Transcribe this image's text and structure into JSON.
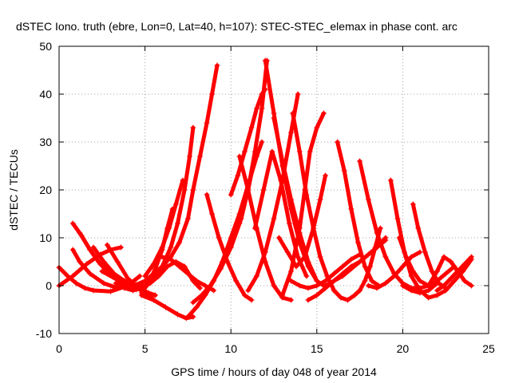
{
  "chart_data": {
    "type": "scatter",
    "title": "dSTEC Iono. truth (ebre, Lon=0, Lat=40, h=107): STEC-STEC_elemax in phase cont. arc",
    "xlabel": "GPS time / hours of day 048 of year 2014",
    "ylabel": "dSTEC  / TECUs",
    "xlim": [
      0,
      25
    ],
    "ylim": [
      -10,
      50
    ],
    "x_ticks": [
      0,
      5,
      10,
      15,
      20,
      25
    ],
    "y_ticks": [
      -10,
      0,
      10,
      20,
      30,
      40,
      50
    ],
    "grid": true,
    "marker": "+",
    "series_color": "#ff0000",
    "series": [
      {
        "x": [
          0.0,
          0.5,
          1.0,
          1.5,
          2.0,
          3.0,
          4.0,
          4.7
        ],
        "values": [
          3.8,
          2.0,
          0.5,
          -0.5,
          -1.0,
          -1.2,
          0.0,
          2.0
        ]
      },
      {
        "x": [
          0.0,
          0.8,
          1.6,
          2.4,
          3.0,
          3.6
        ],
        "values": [
          0.0,
          2.0,
          4.5,
          6.5,
          7.5,
          8.0
        ]
      },
      {
        "x": [
          0.8,
          1.3,
          1.8,
          2.3,
          2.8,
          3.3,
          3.8
        ],
        "values": [
          13.0,
          10.5,
          7.5,
          5.0,
          3.0,
          1.5,
          0.5
        ]
      },
      {
        "x": [
          0.8,
          1.2,
          1.8,
          2.6,
          3.4
        ],
        "values": [
          7.5,
          5.0,
          2.5,
          0.5,
          -0.5
        ]
      },
      {
        "x": [
          1.2,
          1.8,
          2.4,
          3.0,
          3.6,
          4.2
        ],
        "values": [
          11.0,
          7.5,
          4.5,
          2.5,
          1.0,
          0.5
        ]
      },
      {
        "x": [
          2.0,
          2.6,
          3.2,
          3.8,
          4.4,
          5.0
        ],
        "values": [
          8.0,
          5.0,
          2.5,
          1.0,
          0.2,
          0.0
        ]
      },
      {
        "x": [
          2.8,
          3.4,
          4.0,
          4.6,
          5.2,
          5.6
        ],
        "values": [
          8.5,
          5.0,
          1.5,
          -0.5,
          -1.5,
          -2.0
        ]
      },
      {
        "x": [
          3.3,
          3.8,
          4.3,
          4.8,
          5.3,
          5.8,
          6.3,
          6.8,
          7.3,
          7.8,
          8.2
        ],
        "values": [
          0.5,
          -0.5,
          -1.0,
          -0.5,
          0.5,
          2.0,
          4.0,
          5.0,
          4.0,
          1.0,
          -0.5
        ]
      },
      {
        "x": [
          2.5,
          3.5,
          4.2,
          4.8,
          5.4
        ],
        "values": [
          3.0,
          1.0,
          0.0,
          -1.0,
          -2.5
        ]
      },
      {
        "x": [
          3.5,
          4.0,
          4.5,
          5.0,
          5.5,
          6.0,
          6.5,
          6.9,
          7.3,
          7.6,
          7.8
        ],
        "values": [
          0.5,
          -0.5,
          -0.8,
          0.0,
          1.5,
          4.0,
          8.0,
          13.0,
          20.0,
          27.0,
          33.0
        ]
      },
      {
        "x": [
          4.5,
          5.0,
          5.5,
          6.0,
          6.5,
          7.0,
          7.5,
          7.8,
          8.2,
          8.6,
          8.9,
          9.2
        ],
        "values": [
          0.2,
          1.0,
          2.5,
          4.0,
          6.0,
          9.0,
          14.0,
          20.0,
          27.0,
          34.0,
          40.0,
          46.0
        ]
      },
      {
        "x": [
          5.0,
          5.5,
          6.0,
          6.4,
          6.8,
          7.2
        ],
        "values": [
          2.0,
          4.5,
          8.0,
          12.0,
          17.0,
          22.0
        ]
      },
      {
        "x": [
          4.8,
          5.2,
          5.6,
          6.0,
          6.3,
          6.6
        ],
        "values": [
          -1.5,
          0.5,
          3.5,
          7.5,
          12.0,
          16.0
        ]
      },
      {
        "x": [
          4.8,
          5.5,
          6.2,
          6.9,
          7.4,
          7.8
        ],
        "values": [
          -2.0,
          -3.0,
          -4.5,
          -6.0,
          -6.8,
          -6.5
        ]
      },
      {
        "x": [
          7.5,
          8.0,
          8.5,
          9.0,
          9.5,
          10.0,
          10.5,
          11.0,
          11.5,
          11.8
        ],
        "values": [
          -6.5,
          -4.5,
          -2.0,
          1.0,
          5.0,
          10.0,
          15.0,
          21.0,
          27.0,
          30.0
        ]
      },
      {
        "x": [
          7.8,
          8.3,
          8.8,
          9.4,
          10.0,
          10.6,
          11.0,
          11.4
        ],
        "values": [
          -3.5,
          -2.0,
          0.0,
          3.5,
          8.0,
          14.0,
          20.0,
          27.0
        ]
      },
      {
        "x": [
          6.0,
          6.5,
          7.0,
          7.5,
          8.0,
          8.5,
          9.0
        ],
        "values": [
          6.0,
          5.5,
          4.0,
          2.5,
          1.0,
          0.0,
          -1.0
        ]
      },
      {
        "x": [
          8.6,
          8.9,
          9.3,
          9.8,
          10.3,
          10.8,
          11.2
        ],
        "values": [
          19.0,
          15.0,
          10.0,
          5.0,
          1.0,
          -2.0,
          -3.0
        ]
      },
      {
        "x": [
          9.5,
          10.0,
          10.5,
          11.0,
          11.4,
          11.8,
          12.1
        ],
        "values": [
          5.0,
          8.0,
          13.0,
          20.0,
          28.0,
          37.0,
          47.0
        ]
      },
      {
        "x": [
          10.0,
          10.4,
          10.8,
          11.2,
          11.5,
          11.8,
          12.0
        ],
        "values": [
          19.0,
          23.0,
          28.0,
          33.0,
          37.0,
          40.0,
          41.0
        ]
      },
      {
        "x": [
          10.5,
          11.0,
          11.5,
          12.0,
          12.5,
          13.0,
          13.5
        ],
        "values": [
          27.0,
          20.0,
          12.0,
          5.0,
          0.0,
          -2.5,
          -3.0
        ]
      },
      {
        "x": [
          11.0,
          11.5,
          12.0,
          12.5,
          13.0,
          13.5,
          13.9
        ],
        "values": [
          -1.0,
          2.0,
          7.0,
          14.0,
          22.0,
          32.0,
          40.0
        ]
      },
      {
        "x": [
          11.4,
          11.9,
          12.4,
          12.9,
          13.4,
          13.9,
          14.4
        ],
        "values": [
          12.0,
          20.0,
          28.0,
          22.0,
          13.0,
          6.0,
          2.0
        ]
      },
      {
        "x": [
          12.0,
          12.5,
          13.0,
          13.5,
          14.0,
          14.5,
          15.0,
          15.4
        ],
        "values": [
          47.0,
          36.0,
          25.0,
          16.0,
          9.0,
          4.0,
          1.0,
          0.0
        ]
      },
      {
        "x": [
          12.5,
          13.0,
          13.5,
          14.0,
          14.5,
          15.0
        ],
        "values": [
          35.0,
          26.0,
          18.0,
          11.0,
          5.0,
          1.0
        ]
      },
      {
        "x": [
          13.0,
          13.5,
          14.0,
          14.3,
          14.6,
          15.0,
          15.4
        ],
        "values": [
          -2.0,
          3.0,
          12.0,
          20.0,
          28.0,
          33.0,
          36.0
        ]
      },
      {
        "x": [
          13.6,
          14.0,
          14.4,
          14.8,
          15.2,
          15.6,
          16.0
        ],
        "values": [
          36.0,
          28.0,
          19.0,
          12.0,
          6.0,
          2.0,
          -1.0
        ]
      },
      {
        "x": [
          12.8,
          13.3,
          13.8,
          14.3,
          14.8,
          15.2,
          15.5
        ],
        "values": [
          10.0,
          7.0,
          4.0,
          6.0,
          12.0,
          18.0,
          23.0
        ]
      },
      {
        "x": [
          13.5,
          14.0,
          14.5,
          15.0,
          15.5,
          16.0,
          16.5,
          17.0,
          17.5
        ],
        "values": [
          1.0,
          0.0,
          -0.5,
          0.0,
          1.0,
          2.5,
          4.0,
          5.5,
          6.5
        ]
      },
      {
        "x": [
          14.5,
          15.0,
          15.5,
          16.0,
          16.5,
          17.0,
          17.5,
          18.0,
          18.5,
          19.0
        ],
        "values": [
          -3.0,
          -2.0,
          -0.5,
          1.0,
          2.5,
          4.0,
          5.0,
          6.5,
          8.0,
          9.5
        ]
      },
      {
        "x": [
          16.2,
          16.6,
          17.0,
          17.4,
          17.8,
          18.2,
          18.6
        ],
        "values": [
          30.0,
          24.0,
          16.0,
          9.0,
          4.0,
          1.0,
          0.0
        ]
      },
      {
        "x": [
          16.0,
          16.4,
          16.8,
          17.2,
          17.5
        ],
        "values": [
          -1.0,
          -2.5,
          -3.0,
          -2.0,
          -1.0
        ]
      },
      {
        "x": [
          17.5,
          17.8,
          18.1,
          18.4,
          18.7
        ],
        "values": [
          -1.0,
          1.0,
          4.0,
          8.0,
          12.0
        ]
      },
      {
        "x": [
          17.5,
          18.0,
          18.5,
          19.0,
          19.5,
          20.0,
          20.5,
          21.0,
          21.5,
          22.0,
          22.5,
          23.0
        ],
        "values": [
          26.0,
          18.0,
          11.0,
          6.0,
          2.5,
          0.5,
          -0.5,
          -0.5,
          0.0,
          1.0,
          2.5,
          4.0
        ]
      },
      {
        "x": [
          15.5,
          16.5,
          17.5,
          18.5,
          19.0
        ],
        "values": [
          0.0,
          2.0,
          5.0,
          8.0,
          10.0
        ]
      },
      {
        "x": [
          19.3,
          19.7,
          20.1,
          20.5,
          21.0,
          21.5,
          22.0,
          22.5,
          23.0,
          23.5,
          24.0
        ],
        "values": [
          22.0,
          14.0,
          7.0,
          2.0,
          -1.0,
          -2.5,
          -2.0,
          -1.0,
          1.0,
          3.0,
          5.5
        ]
      },
      {
        "x": [
          19.8,
          20.2,
          20.6,
          21.0,
          21.5,
          22.0
        ],
        "values": [
          10.0,
          6.0,
          3.0,
          1.0,
          0.0,
          0.5
        ]
      },
      {
        "x": [
          20.6,
          20.9,
          21.3,
          21.7,
          22.1,
          22.5
        ],
        "values": [
          17.0,
          12.0,
          7.0,
          3.0,
          0.5,
          -0.5
        ]
      },
      {
        "x": [
          18.0,
          18.5,
          19.0,
          19.5,
          20.0,
          20.5,
          21.0
        ],
        "values": [
          0.0,
          -0.5,
          0.5,
          2.0,
          4.0,
          6.0,
          7.0
        ]
      },
      {
        "x": [
          20.0,
          20.5,
          21.0,
          21.5,
          22.0
        ],
        "values": [
          0.0,
          -1.0,
          -1.5,
          -1.0,
          0.5
        ]
      },
      {
        "x": [
          21.5,
          22.0,
          22.4,
          22.8,
          23.2,
          23.6,
          24.0
        ],
        "values": [
          0.0,
          3.0,
          6.0,
          5.0,
          3.0,
          1.0,
          0.0
        ]
      },
      {
        "x": [
          22.0,
          22.4,
          22.8,
          23.2,
          23.6,
          24.0
        ],
        "values": [
          -1.0,
          0.0,
          1.5,
          3.0,
          4.5,
          6.0
        ]
      }
    ]
  }
}
